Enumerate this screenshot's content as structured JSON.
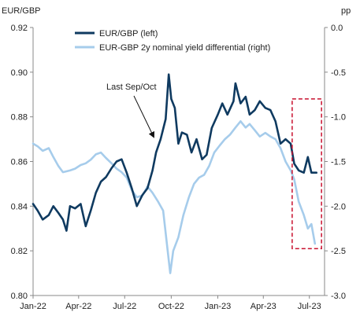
{
  "chart_data": {
    "type": "line",
    "left_axis_label": "EUR/GBP",
    "right_axis_label": "pp",
    "left_ylim": [
      0.8,
      0.92
    ],
    "right_ylim": [
      -3.0,
      0.0
    ],
    "left_ticks": [
      "0.80",
      "0.82",
      "0.84",
      "0.86",
      "0.88",
      "0.90",
      "0.92"
    ],
    "right_ticks": [
      "-3.0",
      "-2.5",
      "-2.0",
      "-1.5",
      "-1.0",
      "-0.5",
      "0.0"
    ],
    "x_ticks": [
      "Jan-22",
      "Apr-22",
      "Jul-22",
      "Oct-22",
      "Jan-23",
      "Apr-23",
      "Jul-23"
    ],
    "x_range": [
      "2022-01-01",
      "2023-07-31"
    ],
    "annotation": "Last Sep/Oct",
    "grid": false,
    "legend_position": "top-left",
    "series": [
      {
        "name": "EUR/GBP (left)",
        "axis": "left",
        "color": "#0f3a60",
        "points": [
          [
            "2022-01-01",
            0.841
          ],
          [
            "2022-01-10",
            0.838
          ],
          [
            "2022-01-20",
            0.834
          ],
          [
            "2022-02-01",
            0.836
          ],
          [
            "2022-02-10",
            0.84
          ],
          [
            "2022-02-20",
            0.837
          ],
          [
            "2022-03-01",
            0.834
          ],
          [
            "2022-03-08",
            0.829
          ],
          [
            "2022-03-15",
            0.84
          ],
          [
            "2022-03-25",
            0.839
          ],
          [
            "2022-04-05",
            0.841
          ],
          [
            "2022-04-15",
            0.831
          ],
          [
            "2022-04-25",
            0.838
          ],
          [
            "2022-05-05",
            0.846
          ],
          [
            "2022-05-15",
            0.851
          ],
          [
            "2022-05-25",
            0.853
          ],
          [
            "2022-06-05",
            0.857
          ],
          [
            "2022-06-15",
            0.86
          ],
          [
            "2022-06-25",
            0.861
          ],
          [
            "2022-07-05",
            0.855
          ],
          [
            "2022-07-15",
            0.848
          ],
          [
            "2022-07-25",
            0.84
          ],
          [
            "2022-08-05",
            0.845
          ],
          [
            "2022-08-15",
            0.848
          ],
          [
            "2022-08-25",
            0.856
          ],
          [
            "2022-09-01",
            0.864
          ],
          [
            "2022-09-10",
            0.87
          ],
          [
            "2022-09-20",
            0.879
          ],
          [
            "2022-09-26",
            0.899
          ],
          [
            "2022-10-01",
            0.888
          ],
          [
            "2022-10-08",
            0.884
          ],
          [
            "2022-10-15",
            0.868
          ],
          [
            "2022-10-22",
            0.873
          ],
          [
            "2022-11-01",
            0.872
          ],
          [
            "2022-11-10",
            0.864
          ],
          [
            "2022-11-20",
            0.87
          ],
          [
            "2022-12-01",
            0.861
          ],
          [
            "2022-12-10",
            0.863
          ],
          [
            "2022-12-20",
            0.875
          ],
          [
            "2023-01-01",
            0.881
          ],
          [
            "2023-01-10",
            0.886
          ],
          [
            "2023-01-20",
            0.881
          ],
          [
            "2023-02-01",
            0.887
          ],
          [
            "2023-02-05",
            0.895
          ],
          [
            "2023-02-15",
            0.886
          ],
          [
            "2023-02-25",
            0.889
          ],
          [
            "2023-03-05",
            0.881
          ],
          [
            "2023-03-15",
            0.883
          ],
          [
            "2023-03-25",
            0.887
          ],
          [
            "2023-04-05",
            0.884
          ],
          [
            "2023-04-15",
            0.883
          ],
          [
            "2023-04-25",
            0.878
          ],
          [
            "2023-05-05",
            0.868
          ],
          [
            "2023-05-15",
            0.87
          ],
          [
            "2023-05-25",
            0.868
          ],
          [
            "2023-06-01",
            0.859
          ],
          [
            "2023-06-10",
            0.856
          ],
          [
            "2023-06-20",
            0.855
          ],
          [
            "2023-06-28",
            0.862
          ],
          [
            "2023-07-05",
            0.855
          ],
          [
            "2023-07-15",
            0.855
          ]
        ]
      },
      {
        "name": "EUR-GBP 2y nominal yield differential (right)",
        "axis": "right",
        "color": "#a6cceb",
        "points": [
          [
            "2022-01-01",
            -1.3
          ],
          [
            "2022-01-10",
            -1.33
          ],
          [
            "2022-01-20",
            -1.38
          ],
          [
            "2022-02-01",
            -1.35
          ],
          [
            "2022-02-10",
            -1.45
          ],
          [
            "2022-02-20",
            -1.55
          ],
          [
            "2022-03-01",
            -1.62
          ],
          [
            "2022-03-15",
            -1.6
          ],
          [
            "2022-03-25",
            -1.58
          ],
          [
            "2022-04-05",
            -1.54
          ],
          [
            "2022-04-15",
            -1.52
          ],
          [
            "2022-04-25",
            -1.48
          ],
          [
            "2022-05-05",
            -1.42
          ],
          [
            "2022-05-15",
            -1.4
          ],
          [
            "2022-05-25",
            -1.46
          ],
          [
            "2022-06-05",
            -1.52
          ],
          [
            "2022-06-15",
            -1.58
          ],
          [
            "2022-06-25",
            -1.62
          ],
          [
            "2022-07-05",
            -1.68
          ],
          [
            "2022-07-15",
            -1.82
          ],
          [
            "2022-07-25",
            -1.9
          ],
          [
            "2022-08-05",
            -1.88
          ],
          [
            "2022-08-15",
            -1.78
          ],
          [
            "2022-08-25",
            -1.85
          ],
          [
            "2022-09-05",
            -1.95
          ],
          [
            "2022-09-15",
            -2.05
          ],
          [
            "2022-09-25",
            -2.55
          ],
          [
            "2022-09-29",
            -2.75
          ],
          [
            "2022-10-05",
            -2.5
          ],
          [
            "2022-10-15",
            -2.35
          ],
          [
            "2022-10-25",
            -2.1
          ],
          [
            "2022-11-05",
            -1.9
          ],
          [
            "2022-11-15",
            -1.75
          ],
          [
            "2022-11-25",
            -1.68
          ],
          [
            "2022-12-05",
            -1.65
          ],
          [
            "2022-12-15",
            -1.55
          ],
          [
            "2022-12-25",
            -1.4
          ],
          [
            "2023-01-05",
            -1.32
          ],
          [
            "2023-01-15",
            -1.25
          ],
          [
            "2023-01-25",
            -1.2
          ],
          [
            "2023-02-05",
            -1.12
          ],
          [
            "2023-02-15",
            -1.05
          ],
          [
            "2023-02-25",
            -1.12
          ],
          [
            "2023-03-05",
            -1.08
          ],
          [
            "2023-03-15",
            -1.15
          ],
          [
            "2023-03-25",
            -1.22
          ],
          [
            "2023-04-05",
            -1.18
          ],
          [
            "2023-04-15",
            -1.22
          ],
          [
            "2023-04-25",
            -1.25
          ],
          [
            "2023-05-05",
            -1.35
          ],
          [
            "2023-05-15",
            -1.5
          ],
          [
            "2023-05-25",
            -1.6
          ],
          [
            "2023-06-01",
            -1.7
          ],
          [
            "2023-06-10",
            -1.95
          ],
          [
            "2023-06-20",
            -2.1
          ],
          [
            "2023-06-28",
            -2.25
          ],
          [
            "2023-07-05",
            -2.2
          ],
          [
            "2023-07-12",
            -2.42
          ]
        ]
      }
    ]
  },
  "colors": {
    "eurgbp": "#0f3a60",
    "differential": "#a6cceb",
    "highlight_box": "#c8102e",
    "axis": "#888888"
  }
}
